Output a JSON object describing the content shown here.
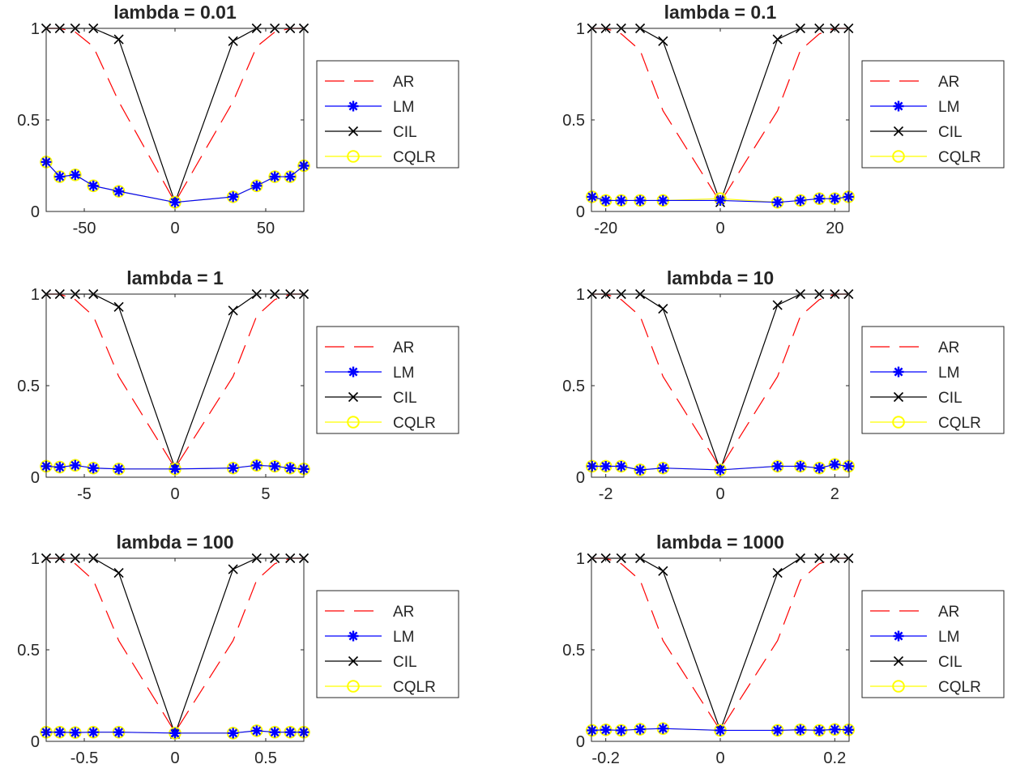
{
  "colors": {
    "AR": "#ff0000",
    "LM": "#0000ff",
    "CIL": "#000000",
    "CQLR": "#ffff00",
    "axes": "#262626",
    "background": "#ffffff"
  },
  "legend": {
    "position": "right of each panel",
    "entries": [
      {
        "label": "AR",
        "marker": "none",
        "line": "dashed",
        "color": "#ff0000"
      },
      {
        "label": "LM",
        "marker": "asterisk",
        "line": "solid",
        "color": "#0000ff"
      },
      {
        "label": "CIL",
        "marker": "x",
        "line": "solid",
        "color": "#000000"
      },
      {
        "label": "CQLR",
        "marker": "circle",
        "line": "solid",
        "color": "#ffff00"
      }
    ]
  },
  "chart_data": [
    {
      "type": "line",
      "title": "lambda = 0.01",
      "xlabel": "",
      "ylabel": "",
      "xlim": [
        -71,
        71
      ],
      "ylim": [
        0,
        1
      ],
      "xticks": [
        -50,
        0,
        50
      ],
      "xtick_labels": [
        "-50",
        "0",
        "50"
      ],
      "yticks": [
        0,
        0.5,
        1
      ],
      "ytick_labels": [
        "0",
        "0.5",
        "1"
      ],
      "grid": false,
      "x": [
        -71,
        -63.5,
        -55,
        -45,
        -31,
        0,
        32,
        45,
        55,
        63.5,
        71
      ],
      "series": [
        {
          "name": "AR",
          "values": [
            1,
            1,
            0.98,
            0.9,
            0.6,
            0.05,
            0.6,
            0.9,
            0.98,
            1,
            1
          ]
        },
        {
          "name": "LM",
          "values": [
            0.27,
            0.19,
            0.2,
            0.14,
            0.11,
            0.05,
            0.08,
            0.14,
            0.19,
            0.19,
            0.25
          ]
        },
        {
          "name": "CIL",
          "values": [
            1,
            1,
            1,
            1,
            0.94,
            0.05,
            0.93,
            1,
            1,
            1,
            1
          ]
        },
        {
          "name": "CQLR",
          "values": [
            0.27,
            0.19,
            0.2,
            0.14,
            0.11,
            0.05,
            0.08,
            0.14,
            0.19,
            0.19,
            0.25
          ]
        }
      ]
    },
    {
      "type": "line",
      "title": "lambda = 0.1",
      "xlabel": "",
      "ylabel": "",
      "xlim": [
        -22.5,
        22.5
      ],
      "ylim": [
        0,
        1
      ],
      "xticks": [
        -20,
        0,
        20
      ],
      "xtick_labels": [
        "-20",
        "0",
        "20"
      ],
      "yticks": [
        0,
        0.5,
        1
      ],
      "ytick_labels": [
        "0",
        "0.5",
        "1"
      ],
      "grid": false,
      "x": [
        -22.4,
        -20,
        -17.3,
        -14,
        -10,
        0,
        10,
        14,
        17.3,
        20,
        22.4
      ],
      "series": [
        {
          "name": "AR",
          "values": [
            1,
            1,
            0.97,
            0.88,
            0.55,
            0.05,
            0.55,
            0.88,
            0.97,
            1,
            1
          ]
        },
        {
          "name": "LM",
          "values": [
            0.08,
            0.06,
            0.06,
            0.06,
            0.06,
            0.06,
            0.05,
            0.06,
            0.07,
            0.07,
            0.08
          ]
        },
        {
          "name": "CIL",
          "values": [
            1,
            1,
            1,
            1,
            0.93,
            0.05,
            0.94,
            1,
            1,
            1,
            1
          ]
        },
        {
          "name": "CQLR",
          "values": [
            0.08,
            0.06,
            0.06,
            0.06,
            0.06,
            0.07,
            0.05,
            0.06,
            0.07,
            0.07,
            0.08
          ]
        }
      ]
    },
    {
      "type": "line",
      "title": "lambda = 1",
      "xlabel": "",
      "ylabel": "",
      "xlim": [
        -7.1,
        7.1
      ],
      "ylim": [
        0,
        1
      ],
      "xticks": [
        -5,
        0,
        5
      ],
      "xtick_labels": [
        "-5",
        "0",
        "5"
      ],
      "yticks": [
        0,
        0.5,
        1
      ],
      "ytick_labels": [
        "0",
        "0.5",
        "1"
      ],
      "grid": false,
      "x": [
        -7.1,
        -6.35,
        -5.5,
        -4.5,
        -3.1,
        0,
        3.2,
        4.5,
        5.5,
        6.35,
        7.1
      ],
      "series": [
        {
          "name": "AR",
          "values": [
            1,
            1,
            0.97,
            0.88,
            0.55,
            0.05,
            0.55,
            0.88,
            0.97,
            1,
            1
          ]
        },
        {
          "name": "LM",
          "values": [
            0.06,
            0.055,
            0.065,
            0.05,
            0.045,
            0.045,
            0.05,
            0.065,
            0.06,
            0.05,
            0.045
          ]
        },
        {
          "name": "CIL",
          "values": [
            1,
            1,
            1,
            1,
            0.93,
            0.05,
            0.91,
            1,
            1,
            1,
            1
          ]
        },
        {
          "name": "CQLR",
          "values": [
            0.06,
            0.055,
            0.065,
            0.05,
            0.045,
            0.045,
            0.05,
            0.065,
            0.06,
            0.05,
            0.045
          ]
        }
      ]
    },
    {
      "type": "line",
      "title": "lambda = 10",
      "xlabel": "",
      "ylabel": "",
      "xlim": [
        -2.25,
        2.25
      ],
      "ylim": [
        0,
        1
      ],
      "xticks": [
        -2,
        0,
        2
      ],
      "xtick_labels": [
        "-2",
        "0",
        "2"
      ],
      "yticks": [
        0,
        0.5,
        1
      ],
      "ytick_labels": [
        "0",
        "0.5",
        "1"
      ],
      "grid": false,
      "x": [
        -2.24,
        -2,
        -1.73,
        -1.4,
        -1,
        0,
        1,
        1.4,
        1.73,
        2,
        2.24
      ],
      "series": [
        {
          "name": "AR",
          "values": [
            1,
            1,
            0.97,
            0.88,
            0.55,
            0.05,
            0.55,
            0.88,
            0.97,
            1,
            1
          ]
        },
        {
          "name": "LM",
          "values": [
            0.06,
            0.06,
            0.06,
            0.04,
            0.05,
            0.04,
            0.06,
            0.06,
            0.05,
            0.07,
            0.06
          ]
        },
        {
          "name": "CIL",
          "values": [
            1,
            1,
            1,
            1,
            0.92,
            0.04,
            0.94,
            1,
            1,
            1,
            1
          ]
        },
        {
          "name": "CQLR",
          "values": [
            0.06,
            0.06,
            0.06,
            0.04,
            0.05,
            0.04,
            0.06,
            0.06,
            0.05,
            0.07,
            0.06
          ]
        }
      ]
    },
    {
      "type": "line",
      "title": "lambda = 100",
      "xlabel": "",
      "ylabel": "",
      "xlim": [
        -0.71,
        0.71
      ],
      "ylim": [
        0,
        1
      ],
      "xticks": [
        -0.5,
        0,
        0.5
      ],
      "xtick_labels": [
        "-0.5",
        "0",
        "0.5"
      ],
      "yticks": [
        0,
        0.5,
        1
      ],
      "ytick_labels": [
        "0",
        "0.5",
        "1"
      ],
      "grid": false,
      "x": [
        -0.71,
        -0.635,
        -0.55,
        -0.45,
        -0.31,
        0,
        0.32,
        0.45,
        0.55,
        0.635,
        0.71
      ],
      "series": [
        {
          "name": "AR",
          "values": [
            1,
            1,
            0.97,
            0.88,
            0.55,
            0.05,
            0.55,
            0.88,
            0.97,
            1,
            1
          ]
        },
        {
          "name": "LM",
          "values": [
            0.05,
            0.05,
            0.048,
            0.05,
            0.05,
            0.045,
            0.045,
            0.058,
            0.05,
            0.05,
            0.05
          ]
        },
        {
          "name": "CIL",
          "values": [
            1,
            1,
            1,
            1,
            0.92,
            0.04,
            0.94,
            1,
            1,
            1,
            1
          ]
        },
        {
          "name": "CQLR",
          "values": [
            0.05,
            0.05,
            0.048,
            0.05,
            0.05,
            0.045,
            0.045,
            0.058,
            0.05,
            0.05,
            0.05
          ]
        }
      ]
    },
    {
      "type": "line",
      "title": "lambda = 1000",
      "xlabel": "",
      "ylabel": "",
      "xlim": [
        -0.225,
        0.225
      ],
      "ylim": [
        0,
        1
      ],
      "xticks": [
        -0.2,
        0,
        0.2
      ],
      "xtick_labels": [
        "-0.2",
        "0",
        "0.2"
      ],
      "yticks": [
        0,
        0.5,
        1
      ],
      "ytick_labels": [
        "0",
        "0.5",
        "1"
      ],
      "grid": false,
      "x": [
        -0.224,
        -0.2,
        -0.173,
        -0.14,
        -0.1,
        0,
        0.1,
        0.14,
        0.173,
        0.2,
        0.224
      ],
      "series": [
        {
          "name": "AR",
          "values": [
            1,
            1,
            0.97,
            0.88,
            0.55,
            0.06,
            0.55,
            0.88,
            0.97,
            1,
            1
          ]
        },
        {
          "name": "LM",
          "values": [
            0.06,
            0.063,
            0.06,
            0.066,
            0.07,
            0.06,
            0.06,
            0.063,
            0.06,
            0.065,
            0.063
          ]
        },
        {
          "name": "CIL",
          "values": [
            1,
            1,
            1,
            1,
            0.93,
            0.06,
            0.92,
            1,
            1,
            1,
            1
          ]
        },
        {
          "name": "CQLR",
          "values": [
            0.06,
            0.063,
            0.06,
            0.066,
            0.07,
            0.06,
            0.06,
            0.063,
            0.06,
            0.065,
            0.063
          ]
        }
      ]
    }
  ]
}
